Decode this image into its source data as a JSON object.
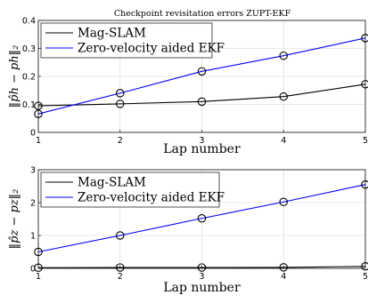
{
  "chart_data": [
    {
      "type": "line",
      "title": "Checkpoint revisitation errors ZUPT-EKF",
      "xlabel": "Lap number",
      "ylabel": "‖p̂h − ph‖₂",
      "x": [
        1,
        2,
        3,
        4,
        5
      ],
      "xticks": [
        "1",
        "2",
        "3",
        "4",
        "5"
      ],
      "ylim": [
        0,
        0.4
      ],
      "yticks": [
        "0",
        "0.1",
        "0.2",
        "0.3",
        "0.4"
      ],
      "grid": true,
      "legend_position": "top-left",
      "series": [
        {
          "name": "Mag-SLAM",
          "values": [
            0.095,
            0.102,
            0.11,
            0.128,
            0.172
          ],
          "color": "#000000"
        },
        {
          "name": "Zero-velocity aided EKF",
          "values": [
            0.066,
            0.14,
            0.218,
            0.274,
            0.337
          ],
          "color": "#0000ff"
        }
      ]
    },
    {
      "type": "line",
      "title": "",
      "xlabel": "Lap number",
      "ylabel": "‖p̂z − pz‖₂",
      "x": [
        1,
        2,
        3,
        4,
        5
      ],
      "xticks": [
        "1",
        "2",
        "3",
        "4",
        "5"
      ],
      "ylim": [
        0,
        3
      ],
      "yticks": [
        "0",
        "1",
        "2",
        "3"
      ],
      "grid": true,
      "legend_position": "top-left",
      "series": [
        {
          "name": "Mag-SLAM",
          "values": [
            0.02,
            0.025,
            0.025,
            0.03,
            0.06
          ],
          "color": "#000000"
        },
        {
          "name": "Zero-velocity aided EKF",
          "values": [
            0.5,
            1.0,
            1.52,
            2.02,
            2.55
          ],
          "color": "#0000ff"
        }
      ]
    }
  ]
}
